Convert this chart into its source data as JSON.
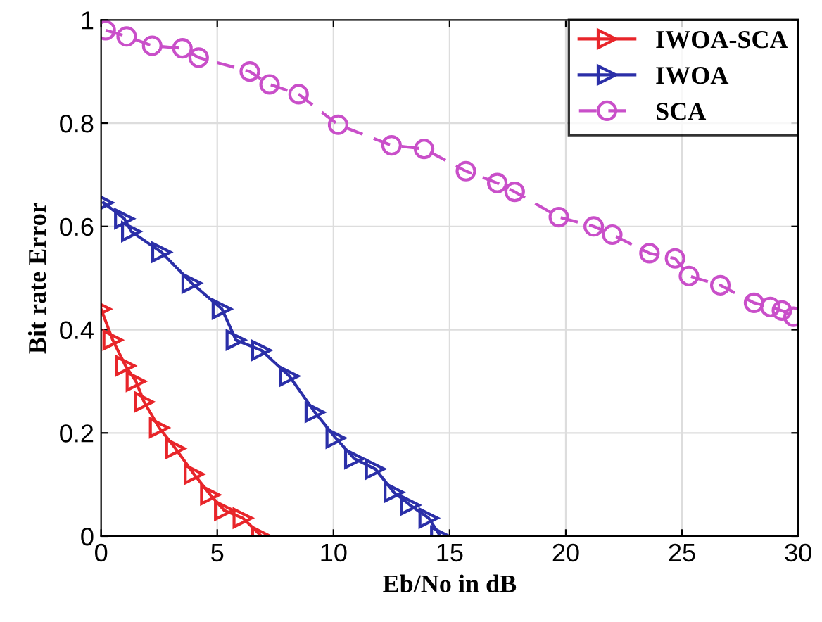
{
  "chart_data": {
    "type": "line",
    "xlabel": "Eb/No in dB",
    "ylabel": "Bit rate Error",
    "xlim": [
      0,
      30
    ],
    "ylim": [
      0,
      1
    ],
    "xticks": [
      0,
      5,
      10,
      15,
      20,
      25,
      30
    ],
    "yticks": [
      0,
      0.2,
      0.4,
      0.6,
      0.8,
      1
    ],
    "grid": true,
    "legend": "top right",
    "series": [
      {
        "name": "IWOA-SCA",
        "color": "#e8252a",
        "marker": "triangle",
        "line_style": "solid",
        "x": [
          0,
          0.5,
          1.05,
          1.5,
          1.85,
          2.5,
          3.2,
          4.0,
          4.7,
          5.3,
          6.1,
          6.9
        ],
        "values": [
          0.44,
          0.38,
          0.33,
          0.3,
          0.26,
          0.21,
          0.17,
          0.12,
          0.08,
          0.05,
          0.035,
          0
        ]
      },
      {
        "name": "IWOA",
        "color": "#2b2fa8",
        "marker": "triangle",
        "line_style": "solid",
        "x": [
          0.1,
          1.0,
          1.3,
          2.6,
          3.9,
          5.2,
          5.8,
          6.9,
          8.1,
          9.2,
          10.1,
          10.9,
          11.8,
          12.6,
          13.3,
          14.1,
          14.6
        ],
        "values": [
          0.646,
          0.615,
          0.59,
          0.55,
          0.49,
          0.44,
          0.38,
          0.36,
          0.31,
          0.24,
          0.19,
          0.15,
          0.13,
          0.085,
          0.06,
          0.035,
          0
        ]
      },
      {
        "name": "SCA",
        "color": "#c94fc9",
        "marker": "circle",
        "line_style": "dashed",
        "x": [
          0.2,
          1.1,
          2.2,
          3.5,
          4.2,
          6.4,
          7.25,
          8.5,
          10.2,
          12.5,
          13.9,
          15.7,
          17.05,
          17.8,
          19.7,
          21.2,
          22.0,
          23.6,
          24.7,
          25.3,
          26.65,
          28.1,
          28.8,
          29.3,
          29.8
        ],
        "values": [
          0.98,
          0.968,
          0.95,
          0.945,
          0.927,
          0.9,
          0.875,
          0.856,
          0.797,
          0.757,
          0.75,
          0.707,
          0.684,
          0.667,
          0.618,
          0.6,
          0.584,
          0.548,
          0.538,
          0.504,
          0.486,
          0.452,
          0.444,
          0.437,
          0.425
        ]
      }
    ]
  }
}
